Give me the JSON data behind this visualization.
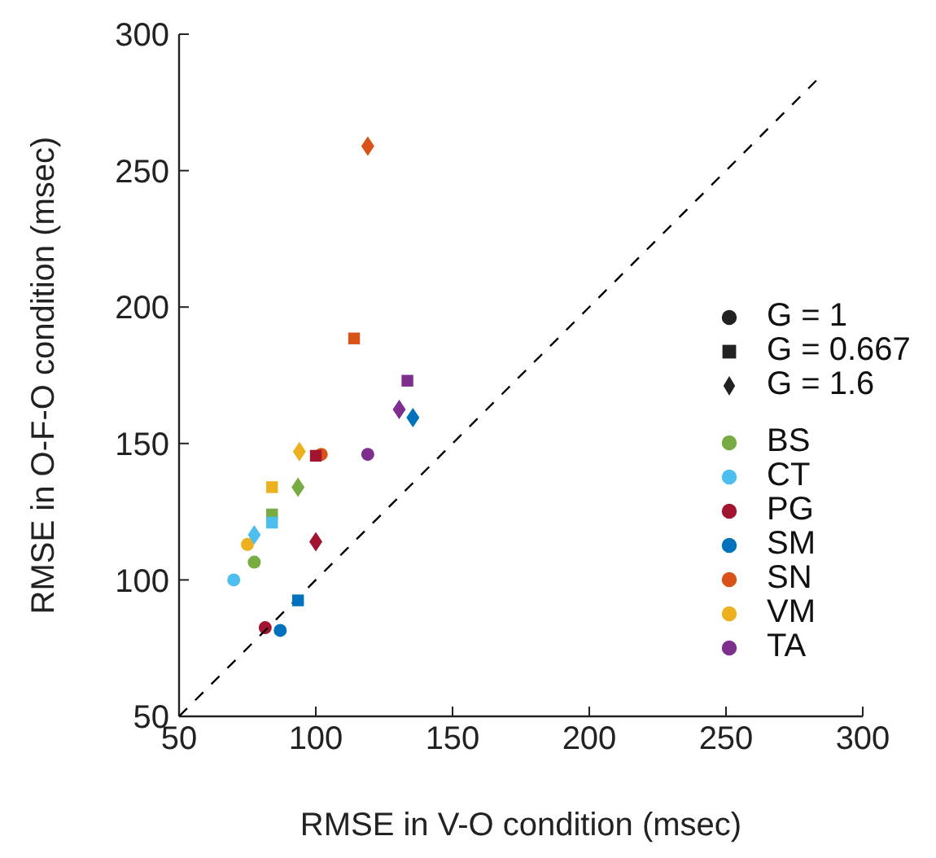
{
  "chart_data": {
    "type": "scatter",
    "xlabel": "RMSE in V-O condition (msec)",
    "ylabel": "RMSE in O-F-O condition (msec)",
    "xlim": [
      50,
      300
    ],
    "xticks": [
      50,
      100,
      150,
      200,
      250,
      300
    ],
    "ylim": [
      50,
      300
    ],
    "yticks": [
      50,
      100,
      150,
      200,
      250,
      300
    ],
    "legend": "right",
    "annotations": [
      "G = 1",
      "G = 0.667",
      "G = 1.6"
    ],
    "series": [
      {
        "name": "BS",
        "color": "#77ac43",
        "marker": [
          "circle",
          "square",
          "diamond"
        ],
        "x": [
          77.5,
          84,
          93.5
        ],
        "values": [
          106.5,
          124,
          134
        ]
      },
      {
        "name": "CT",
        "color": "#4dbeee",
        "marker": [
          "circle",
          "square",
          "diamond"
        ],
        "x": [
          70,
          84,
          77.5
        ],
        "values": [
          100,
          121,
          116.5
        ]
      },
      {
        "name": "PG",
        "color": "#a2142f",
        "marker": [
          "circle",
          "square",
          "diamond"
        ],
        "x": [
          81.5,
          100,
          100
        ],
        "values": [
          82.5,
          145.5,
          114
        ]
      },
      {
        "name": "SM",
        "color": "#0072bd",
        "marker": [
          "circle",
          "square",
          "diamond"
        ],
        "x": [
          87,
          93.5,
          135.5
        ],
        "values": [
          81.5,
          92.5,
          159.5
        ]
      },
      {
        "name": "SN",
        "color": "#d95319",
        "marker": [
          "circle",
          "square",
          "diamond"
        ],
        "x": [
          102,
          114,
          119
        ],
        "values": [
          146,
          188.5,
          259
        ]
      },
      {
        "name": "VM",
        "color": "#edb120",
        "marker": [
          "circle",
          "square",
          "diamond"
        ],
        "x": [
          75,
          84,
          94
        ],
        "values": [
          113,
          134,
          147
        ]
      },
      {
        "name": "TA",
        "color": "#7e2f8e",
        "marker": [
          "circle",
          "square",
          "diamond"
        ],
        "x": [
          119,
          133.5,
          130.5
        ],
        "values": [
          146,
          173,
          162.5
        ]
      },
      {
        "type": "line",
        "line_style": "dashed",
        "color": "#000000",
        "x": [
          50,
          283
        ],
        "values": [
          50,
          283
        ]
      }
    ]
  }
}
